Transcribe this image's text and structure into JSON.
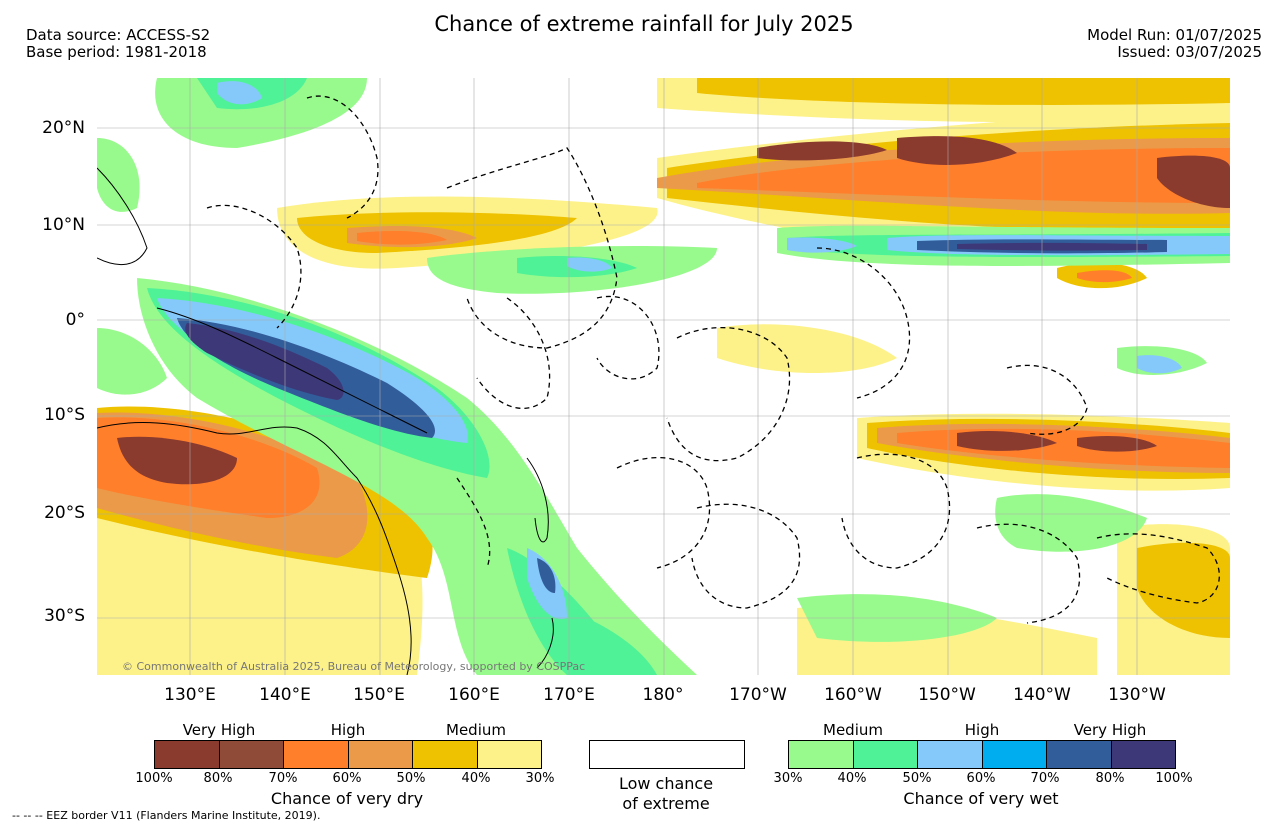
{
  "header": {
    "title": "Chance of extreme rainfall for July 2025",
    "data_source": "Data source: ACCESS-S2",
    "base_period": "Base period: 1981-2018",
    "model_run": "Model Run: 01/07/2025",
    "issued": "Issued: 03/07/2025"
  },
  "map": {
    "lat_labels": [
      "20°N",
      "10°N",
      "0°",
      "10°S",
      "20°S",
      "30°S"
    ],
    "lon_labels": [
      "130°E",
      "140°E",
      "150°E",
      "160°E",
      "170°E",
      "180°",
      "170°W",
      "160°W",
      "150°W",
      "140°W",
      "130°W"
    ],
    "copyright": "© Commonwealth of Australia 2025, Bureau of Meteorology, supported by COSPPac",
    "colors": {
      "dry_100_80": "#8b3a2e",
      "dry_80_70": "#8f4a38",
      "dry_70_60": "#ff7f2a",
      "dry_60_50": "#eb9a4a",
      "dry_50_40": "#eec200",
      "dry_40_30": "#fdf28a",
      "wet_30_40": "#98fa8c",
      "wet_40_50": "#4ff297",
      "wet_50_60": "#85c9fa",
      "wet_60_70": "#00aeef",
      "wet_70_80": "#325d9b",
      "wet_80_100": "#3d3979"
    }
  },
  "legend_dry": {
    "levels": [
      "Very High",
      "High",
      "Medium"
    ],
    "ticks": [
      "100%",
      "80%",
      "70%",
      "60%",
      "50%",
      "40%",
      "30%"
    ],
    "title": "Chance of very dry"
  },
  "legend_low": {
    "line1": "Low chance",
    "line2": "of extreme"
  },
  "legend_wet": {
    "levels": [
      "Medium",
      "High",
      "Very High"
    ],
    "ticks": [
      "30%",
      "40%",
      "50%",
      "60%",
      "70%",
      "80%",
      "100%"
    ],
    "title": "Chance of very wet"
  },
  "footer": "--  --  -- EEZ border V11 (Flanders Marine Institute, 2019)."
}
